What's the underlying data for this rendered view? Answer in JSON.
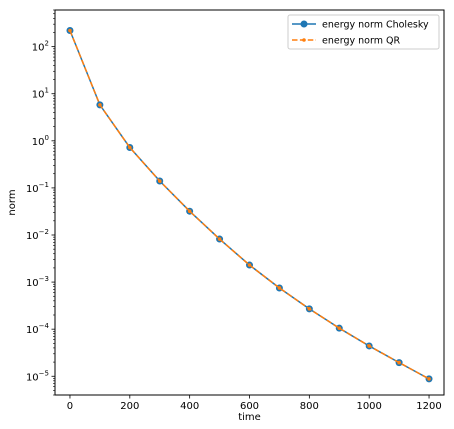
{
  "chart_data": {
    "type": "line",
    "title": "",
    "xlabel": "time",
    "ylabel": "norm",
    "xlim": [
      -50,
      1250
    ],
    "ylim": [
      4e-06,
      600
    ],
    "yscale": "log",
    "grid": false,
    "legend_position": "top-right",
    "xticks": [
      {
        "value": 0,
        "label": "0"
      },
      {
        "value": 200,
        "label": "200"
      },
      {
        "value": 400,
        "label": "400"
      },
      {
        "value": 600,
        "label": "600"
      },
      {
        "value": 800,
        "label": "800"
      },
      {
        "value": 1000,
        "label": "1000"
      },
      {
        "value": 1200,
        "label": "1200"
      }
    ],
    "yticks": [
      {
        "value": 100,
        "base": "10",
        "exp": "2"
      },
      {
        "value": 10,
        "base": "10",
        "exp": "1"
      },
      {
        "value": 1,
        "base": "10",
        "exp": "0"
      },
      {
        "value": 0.1,
        "base": "10",
        "exp": "−1"
      },
      {
        "value": 0.01,
        "base": "10",
        "exp": "−2"
      },
      {
        "value": 0.001,
        "base": "10",
        "exp": "−3"
      },
      {
        "value": 0.0001,
        "base": "10",
        "exp": "−4"
      },
      {
        "value": 1e-05,
        "base": "10",
        "exp": "−5"
      }
    ],
    "x": [
      0,
      100,
      200,
      300,
      400,
      500,
      600,
      700,
      800,
      900,
      1000,
      1100,
      1200
    ],
    "series": [
      {
        "name": "energy norm Cholesky",
        "color": "#1f77b4",
        "linestyle": "solid",
        "marker": "circle",
        "values": [
          220,
          5.8,
          0.72,
          0.14,
          0.032,
          0.0082,
          0.0023,
          0.00075,
          0.00027,
          0.000105,
          4.4e-05,
          1.95e-05,
          8.8e-06
        ]
      },
      {
        "name": "energy norm QR",
        "color": "#ff7f0e",
        "linestyle": "dashed",
        "marker": "point",
        "values": [
          220,
          5.8,
          0.72,
          0.14,
          0.032,
          0.0082,
          0.0023,
          0.00075,
          0.00027,
          0.000105,
          4.4e-05,
          1.95e-05,
          8.8e-06
        ]
      }
    ]
  }
}
